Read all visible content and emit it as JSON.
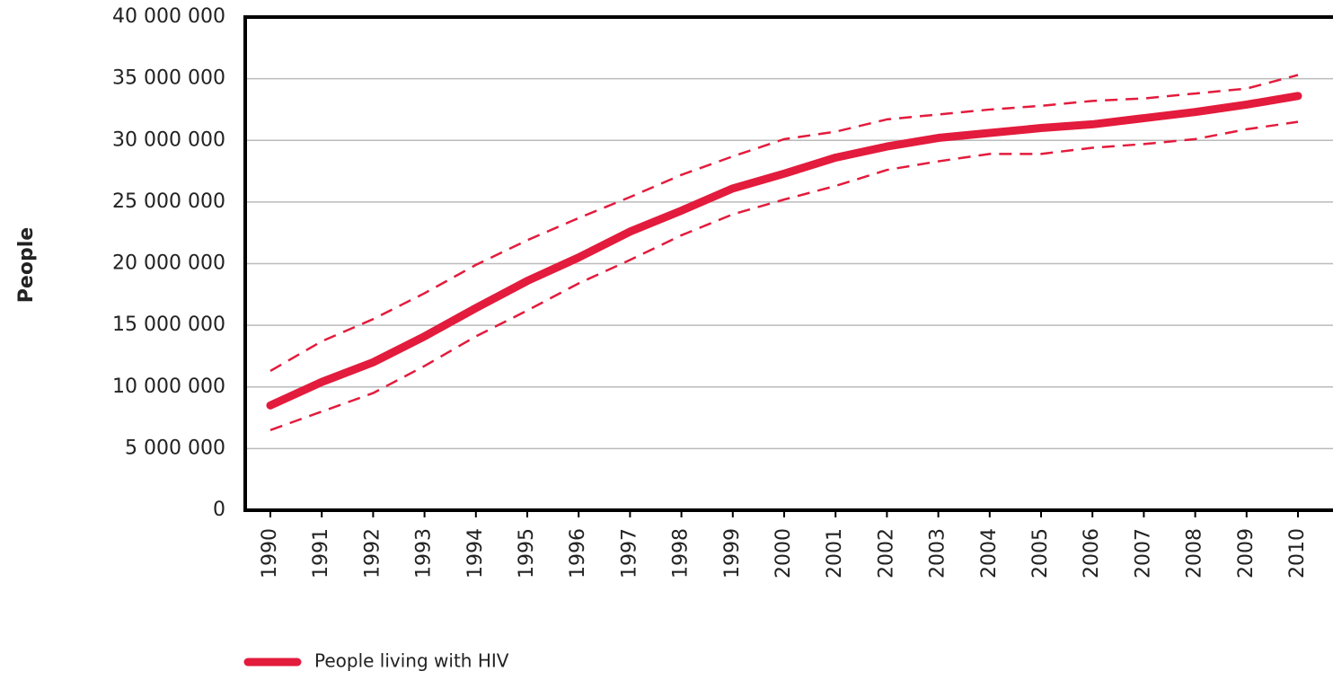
{
  "chart_data": {
    "type": "line",
    "y_label": "People",
    "categories": [
      "1990",
      "1991",
      "1992",
      "1993",
      "1994",
      "1995",
      "1996",
      "1997",
      "1998",
      "1999",
      "2000",
      "2001",
      "2002",
      "2003",
      "2004",
      "2005",
      "2006",
      "2007",
      "2008",
      "2009",
      "2010"
    ],
    "series": [
      {
        "name": "People living with HIV",
        "color": "#e31b3c",
        "values": [
          8500000,
          10400000,
          12000000,
          14100000,
          16400000,
          18600000,
          20500000,
          22600000,
          24300000,
          26100000,
          27300000,
          28600000,
          29500000,
          30200000,
          30600000,
          31000000,
          31300000,
          31800000,
          32300000,
          32900000,
          33600000
        ]
      },
      {
        "color": "#e31b3c",
        "dashed": true,
        "values": [
          11300000,
          13700000,
          15500000,
          17600000,
          19900000,
          21900000,
          23700000,
          25400000,
          27200000,
          28700000,
          30100000,
          30700000,
          31700000,
          32100000,
          32500000,
          32800000,
          33200000,
          33400000,
          33800000,
          34200000,
          35300000
        ]
      },
      {
        "color": "#e31b3c",
        "dashed": true,
        "values": [
          6500000,
          8000000,
          9500000,
          11700000,
          14100000,
          16200000,
          18400000,
          20300000,
          22300000,
          24000000,
          25200000,
          26300000,
          27600000,
          28300000,
          28900000,
          28900000,
          29400000,
          29700000,
          30100000,
          30900000,
          31500000
        ]
      }
    ],
    "ylim": [
      0,
      40000000
    ],
    "yticks": [
      0,
      {
        "value": 5000000,
        "label": "5 000 000"
      },
      {
        "value": 10000000,
        "label": "10 000 000"
      },
      {
        "value": 15000000,
        "label": "15 000 000"
      },
      {
        "value": 20000000,
        "label": "20 000 000"
      },
      {
        "value": 25000000,
        "label": "25 000 000"
      },
      {
        "value": 30000000,
        "label": "30 000 000"
      },
      {
        "value": 35000000,
        "label": "35 000 000"
      },
      {
        "value": 40000000,
        "label": "40 000 000"
      }
    ],
    "grid": true,
    "legend": "bottom"
  }
}
